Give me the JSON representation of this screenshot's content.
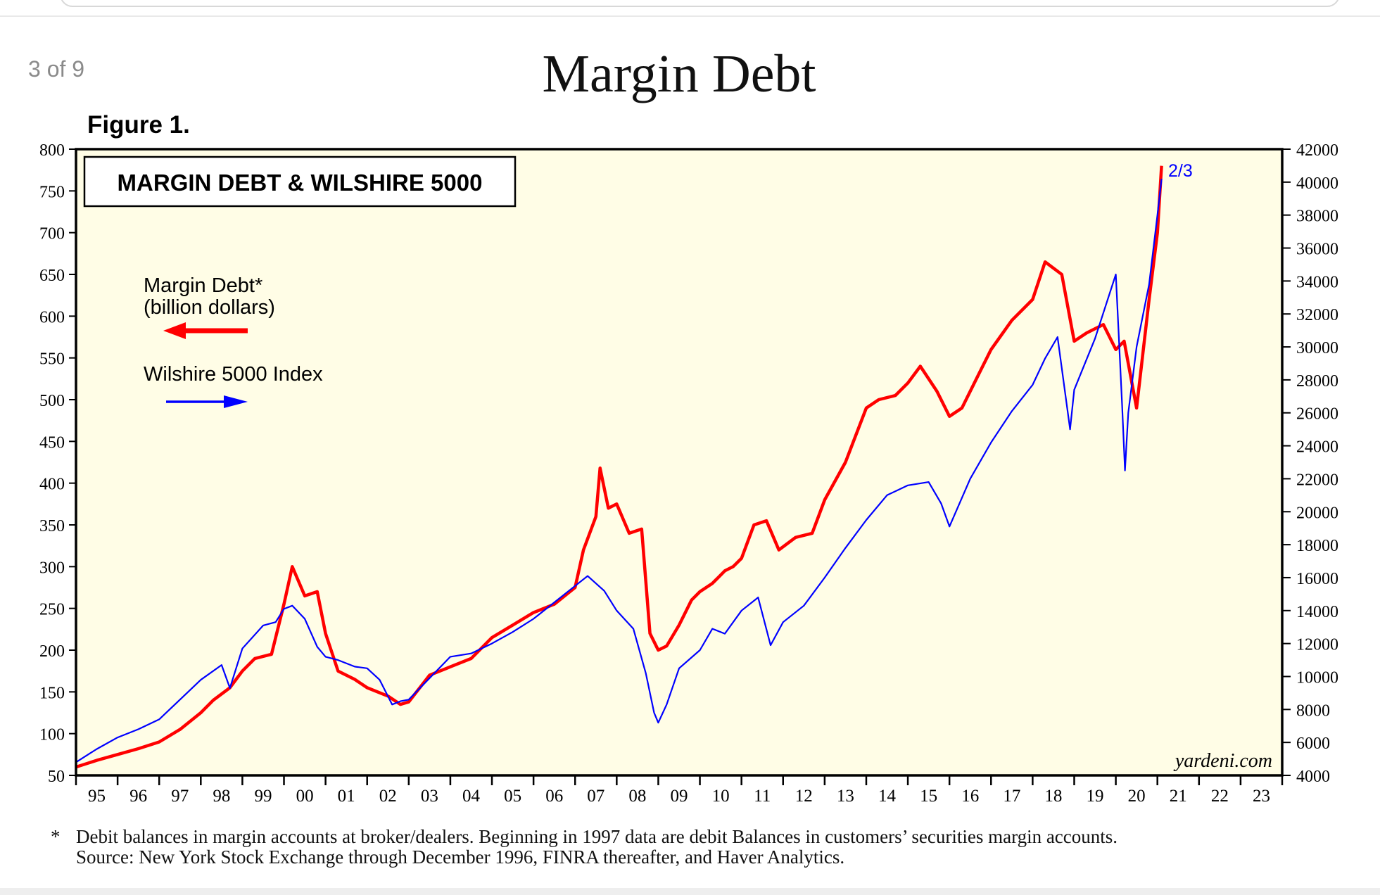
{
  "page": {
    "counter": "3 of 9",
    "title": "Margin Debt",
    "figure_label": "Figure 1."
  },
  "chart_data": {
    "type": "line",
    "title": "MARGIN DEBT & WILSHIRE 5000",
    "watermark": "yardeni.com",
    "annotation": "2/3",
    "background_color": "#fffde6",
    "x_tick_labels": [
      "95",
      "96",
      "97",
      "98",
      "99",
      "00",
      "01",
      "02",
      "03",
      "04",
      "05",
      "06",
      "07",
      "08",
      "09",
      "10",
      "11",
      "12",
      "13",
      "14",
      "15",
      "16",
      "17",
      "18",
      "19",
      "20",
      "21",
      "22",
      "23"
    ],
    "xlim": [
      1995,
      2024
    ],
    "left_axis": {
      "ylim": [
        50,
        800
      ],
      "ticks": [
        50,
        100,
        150,
        200,
        250,
        300,
        350,
        400,
        450,
        500,
        550,
        600,
        650,
        700,
        750,
        800
      ]
    },
    "right_axis": {
      "ylim": [
        4000,
        42000
      ],
      "ticks": [
        4000,
        6000,
        8000,
        10000,
        12000,
        14000,
        16000,
        18000,
        20000,
        22000,
        24000,
        26000,
        28000,
        30000,
        32000,
        34000,
        36000,
        38000,
        40000,
        42000
      ]
    },
    "grid": false,
    "legend": [
      {
        "label_line1": "Margin Debt*",
        "label_line2": "(billion dollars)",
        "arrow": "left",
        "color": "#ff0000"
      },
      {
        "label_line1": "Wilshire 5000 Index",
        "label_line2": "",
        "arrow": "right",
        "color": "#0000ff"
      }
    ],
    "series": [
      {
        "name": "Margin Debt",
        "axis": "left",
        "color": "#ff0000",
        "x": [
          1995.0,
          1995.5,
          1996.0,
          1996.5,
          1997.0,
          1997.5,
          1998.0,
          1998.3,
          1998.7,
          1999.0,
          1999.3,
          1999.7,
          2000.0,
          2000.2,
          2000.5,
          2000.8,
          2001.0,
          2001.3,
          2001.7,
          2002.0,
          2002.5,
          2002.8,
          2003.0,
          2003.5,
          2004.0,
          2004.5,
          2005.0,
          2005.5,
          2006.0,
          2006.5,
          2007.0,
          2007.2,
          2007.5,
          2007.6,
          2007.8,
          2008.0,
          2008.3,
          2008.6,
          2008.8,
          2009.0,
          2009.2,
          2009.5,
          2009.8,
          2010.0,
          2010.3,
          2010.6,
          2010.8,
          2011.0,
          2011.3,
          2011.6,
          2011.9,
          2012.3,
          2012.7,
          2013.0,
          2013.5,
          2014.0,
          2014.3,
          2014.7,
          2015.0,
          2015.3,
          2015.7,
          2016.0,
          2016.3,
          2016.7,
          2017.0,
          2017.5,
          2018.0,
          2018.3,
          2018.7,
          2019.0,
          2019.3,
          2019.7,
          2020.0,
          2020.2,
          2020.5,
          2020.8,
          2021.0,
          2021.1
        ],
        "y": [
          60,
          68,
          75,
          82,
          90,
          105,
          125,
          140,
          155,
          175,
          190,
          195,
          255,
          300,
          265,
          270,
          220,
          175,
          165,
          155,
          145,
          135,
          138,
          170,
          180,
          190,
          215,
          230,
          245,
          255,
          275,
          320,
          360,
          418,
          370,
          375,
          340,
          345,
          220,
          200,
          205,
          230,
          260,
          270,
          280,
          295,
          300,
          310,
          350,
          355,
          320,
          335,
          340,
          380,
          425,
          490,
          500,
          505,
          520,
          540,
          510,
          480,
          490,
          530,
          560,
          595,
          620,
          665,
          650,
          570,
          580,
          590,
          560,
          570,
          490,
          620,
          700,
          780
        ]
      },
      {
        "name": "Wilshire 5000 Index",
        "axis": "right",
        "color": "#0000ff",
        "x": [
          1995.0,
          1995.5,
          1996.0,
          1996.5,
          1997.0,
          1997.5,
          1998.0,
          1998.5,
          1998.7,
          1999.0,
          1999.5,
          1999.8,
          2000.0,
          2000.2,
          2000.5,
          2000.8,
          2001.0,
          2001.3,
          2001.7,
          2002.0,
          2002.3,
          2002.6,
          2002.8,
          2003.0,
          2003.5,
          2004.0,
          2004.5,
          2005.0,
          2005.5,
          2006.0,
          2006.5,
          2007.0,
          2007.3,
          2007.7,
          2008.0,
          2008.4,
          2008.7,
          2008.9,
          2009.0,
          2009.2,
          2009.5,
          2010.0,
          2010.3,
          2010.6,
          2011.0,
          2011.4,
          2011.7,
          2012.0,
          2012.5,
          2013.0,
          2013.5,
          2014.0,
          2014.5,
          2015.0,
          2015.5,
          2015.8,
          2016.0,
          2016.5,
          2017.0,
          2017.5,
          2018.0,
          2018.3,
          2018.6,
          2018.9,
          2019.0,
          2019.5,
          2020.0,
          2020.15,
          2020.22,
          2020.3,
          2020.5,
          2020.8,
          2021.0,
          2021.1
        ],
        "y": [
          4800,
          5600,
          6300,
          6800,
          7400,
          8600,
          9800,
          10700,
          9300,
          11700,
          13100,
          13300,
          14100,
          14300,
          13500,
          11800,
          11200,
          11000,
          10600,
          10500,
          9800,
          8300,
          8500,
          8600,
          9900,
          11200,
          11400,
          12000,
          12700,
          13500,
          14500,
          15500,
          16100,
          15200,
          14000,
          12900,
          10200,
          7800,
          7200,
          8300,
          10500,
          11600,
          12900,
          12600,
          14000,
          14800,
          11900,
          13300,
          14300,
          16000,
          17800,
          19500,
          21000,
          21600,
          21800,
          20500,
          19100,
          22000,
          24200,
          26100,
          27700,
          29300,
          30600,
          25000,
          27400,
          30500,
          34400,
          26500,
          22500,
          26000,
          30000,
          33800,
          38000,
          40200
        ]
      }
    ],
    "footnote_line1": "Debit balances in margin accounts at broker/dealers. Beginning in 1997 data are debit Balances in customers’ securities margin accounts.",
    "footnote_line2": "Source: New York Stock Exchange through December 1996, FINRA thereafter, and Haver Analytics.",
    "footnote_marker": "*"
  }
}
